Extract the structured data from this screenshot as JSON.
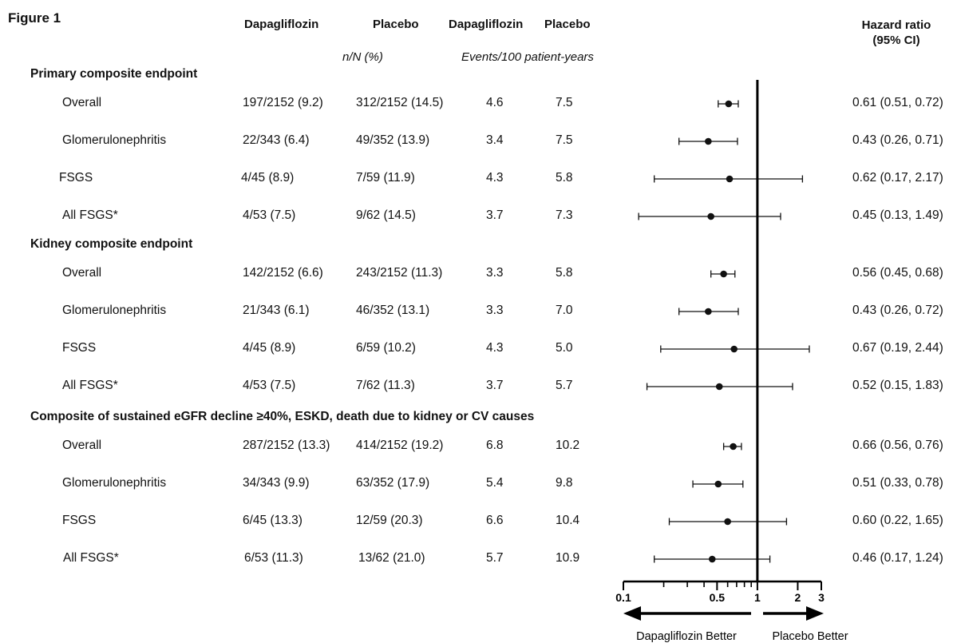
{
  "figure_title": "Figure 1",
  "header": {
    "col1": "Dapagliflozin",
    "col2": "Placebo",
    "col3": "Dapagliflozin",
    "col4": "Placebo",
    "hr_line1": "Hazard ratio",
    "hr_line2": "(95% CI)",
    "sub_counts": "n/N (%)",
    "sub_rates": "Events/100 patient-years"
  },
  "chart_data": {
    "type": "forest",
    "x_scale": "log",
    "xlim": [
      0.1,
      3
    ],
    "reference_line": 1,
    "x_ticks": [
      "0.1",
      "0.5",
      "1",
      "2",
      "3"
    ],
    "x_tick_values": [
      0.1,
      0.5,
      1,
      2,
      3
    ],
    "direction_left": "Dapagliflozin Better",
    "direction_right": "Placebo Better",
    "sections": [
      {
        "title": "Primary composite endpoint",
        "rows": [
          {
            "label": "Overall",
            "dapa_nN": "197/2152 (9.2)",
            "plac_nN": "312/2152 (14.5)",
            "dapa_rate": "4.6",
            "plac_rate": "7.5",
            "hr": 0.61,
            "lo": 0.51,
            "hi": 0.72,
            "hr_text": "0.61 (0.51, 0.72)"
          },
          {
            "label": "Glomerulonephritis",
            "dapa_nN": "22/343 (6.4)",
            "plac_nN": "49/352 (13.9)",
            "dapa_rate": "3.4",
            "plac_rate": "7.5",
            "hr": 0.43,
            "lo": 0.26,
            "hi": 0.71,
            "hr_text": "0.43 (0.26, 0.71)"
          },
          {
            "label": "FSGS",
            "dapa_nN": "4/45 (8.9)",
            "plac_nN": "7/59 (11.9)",
            "dapa_rate": "4.3",
            "plac_rate": "5.8",
            "hr": 0.62,
            "lo": 0.17,
            "hi": 2.17,
            "hr_text": "0.62 (0.17, 2.17)"
          },
          {
            "label": "All FSGS*",
            "dapa_nN": "4/53 (7.5)",
            "plac_nN": "9/62 (14.5)",
            "dapa_rate": "3.7",
            "plac_rate": "7.3",
            "hr": 0.45,
            "lo": 0.13,
            "hi": 1.49,
            "hr_text": "0.45 (0.13, 1.49)"
          }
        ]
      },
      {
        "title": "Kidney composite endpoint",
        "rows": [
          {
            "label": "Overall",
            "dapa_nN": "142/2152 (6.6)",
            "plac_nN": "243/2152 (11.3)",
            "dapa_rate": "3.3",
            "plac_rate": "5.8",
            "hr": 0.56,
            "lo": 0.45,
            "hi": 0.68,
            "hr_text": "0.56 (0.45, 0.68)"
          },
          {
            "label": "Glomerulonephritis",
            "dapa_nN": "21/343 (6.1)",
            "plac_nN": "46/352 (13.1)",
            "dapa_rate": "3.3",
            "plac_rate": "7.0",
            "hr": 0.43,
            "lo": 0.26,
            "hi": 0.72,
            "hr_text": "0.43  (0.26, 0.72)"
          },
          {
            "label": "FSGS",
            "dapa_nN": "4/45 (8.9)",
            "plac_nN": "6/59 (10.2)",
            "dapa_rate": "4.3",
            "plac_rate": "5.0",
            "hr": 0.67,
            "lo": 0.19,
            "hi": 2.44,
            "hr_text": "0.67 (0.19, 2.44)"
          },
          {
            "label": "All FSGS*",
            "dapa_nN": "4/53 (7.5)",
            "plac_nN": "7/62 (11.3)",
            "dapa_rate": "3.7",
            "plac_rate": "5.7",
            "hr": 0.52,
            "lo": 0.15,
            "hi": 1.83,
            "hr_text": "0.52 (0.15, 1.83)"
          }
        ]
      },
      {
        "title": "Composite of sustained eGFR decline ≥40%, ESKD, death due to kidney or CV causes",
        "rows": [
          {
            "label": "Overall",
            "dapa_nN": "287/2152 (13.3)",
            "plac_nN": "414/2152 (19.2)",
            "dapa_rate": "6.8",
            "plac_rate": "10.2",
            "hr": 0.66,
            "lo": 0.56,
            "hi": 0.76,
            "hr_text": "0.66 (0.56, 0.76)"
          },
          {
            "label": "Glomerulonephritis",
            "dapa_nN": "34/343 (9.9)",
            "plac_nN": "63/352 (17.9)",
            "dapa_rate": "5.4",
            "plac_rate": "9.8",
            "hr": 0.51,
            "lo": 0.33,
            "hi": 0.78,
            "hr_text": "0.51 (0.33, 0.78)"
          },
          {
            "label": "FSGS",
            "dapa_nN": "6/45 (13.3)",
            "plac_nN": "12/59 (20.3)",
            "dapa_rate": "6.6",
            "plac_rate": "10.4",
            "hr": 0.6,
            "lo": 0.22,
            "hi": 1.65,
            "hr_text": "0.60 (0.22, 1.65)"
          },
          {
            "label": "All FSGS*",
            "dapa_nN": "6/53 (11.3)",
            "plac_nN": "13/62 (21.0)",
            "dapa_rate": "5.7",
            "plac_rate": "10.9",
            "hr": 0.46,
            "lo": 0.17,
            "hi": 1.24,
            "hr_text": "0.46 (0.17, 1.24)"
          }
        ]
      }
    ]
  }
}
